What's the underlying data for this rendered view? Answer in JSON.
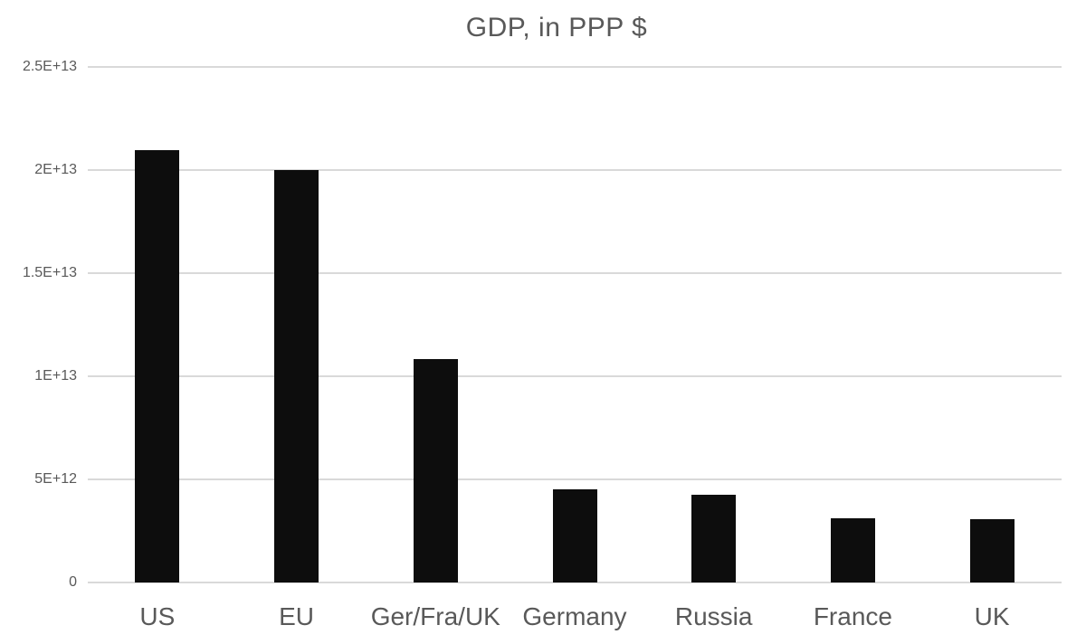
{
  "chart_data": {
    "type": "bar",
    "title": "GDP, in PPP $",
    "categories": [
      "US",
      "EU",
      "Ger/Fra/UK",
      "Germany",
      "Russia",
      "France",
      "UK"
    ],
    "values": [
      20950000000000,
      20000000000000,
      10850000000000,
      4500000000000,
      4250000000000,
      3100000000000,
      3060000000000
    ],
    "xlabel": "",
    "ylabel": "",
    "ylim": [
      0,
      25000000000000
    ],
    "ytick_step": 5000000000000,
    "ytick_labels": [
      "0",
      "5E+12",
      "1E+13",
      "1.5E+13",
      "2E+13",
      "2.5E+13"
    ],
    "grid": "horizontal-gridlines-on",
    "legend": "none",
    "series_name": "GDP"
  },
  "colors": {
    "background": "#ffffff",
    "bar": "#0d0d0d",
    "gridline": "#d9d9d9",
    "text": "#595959"
  }
}
